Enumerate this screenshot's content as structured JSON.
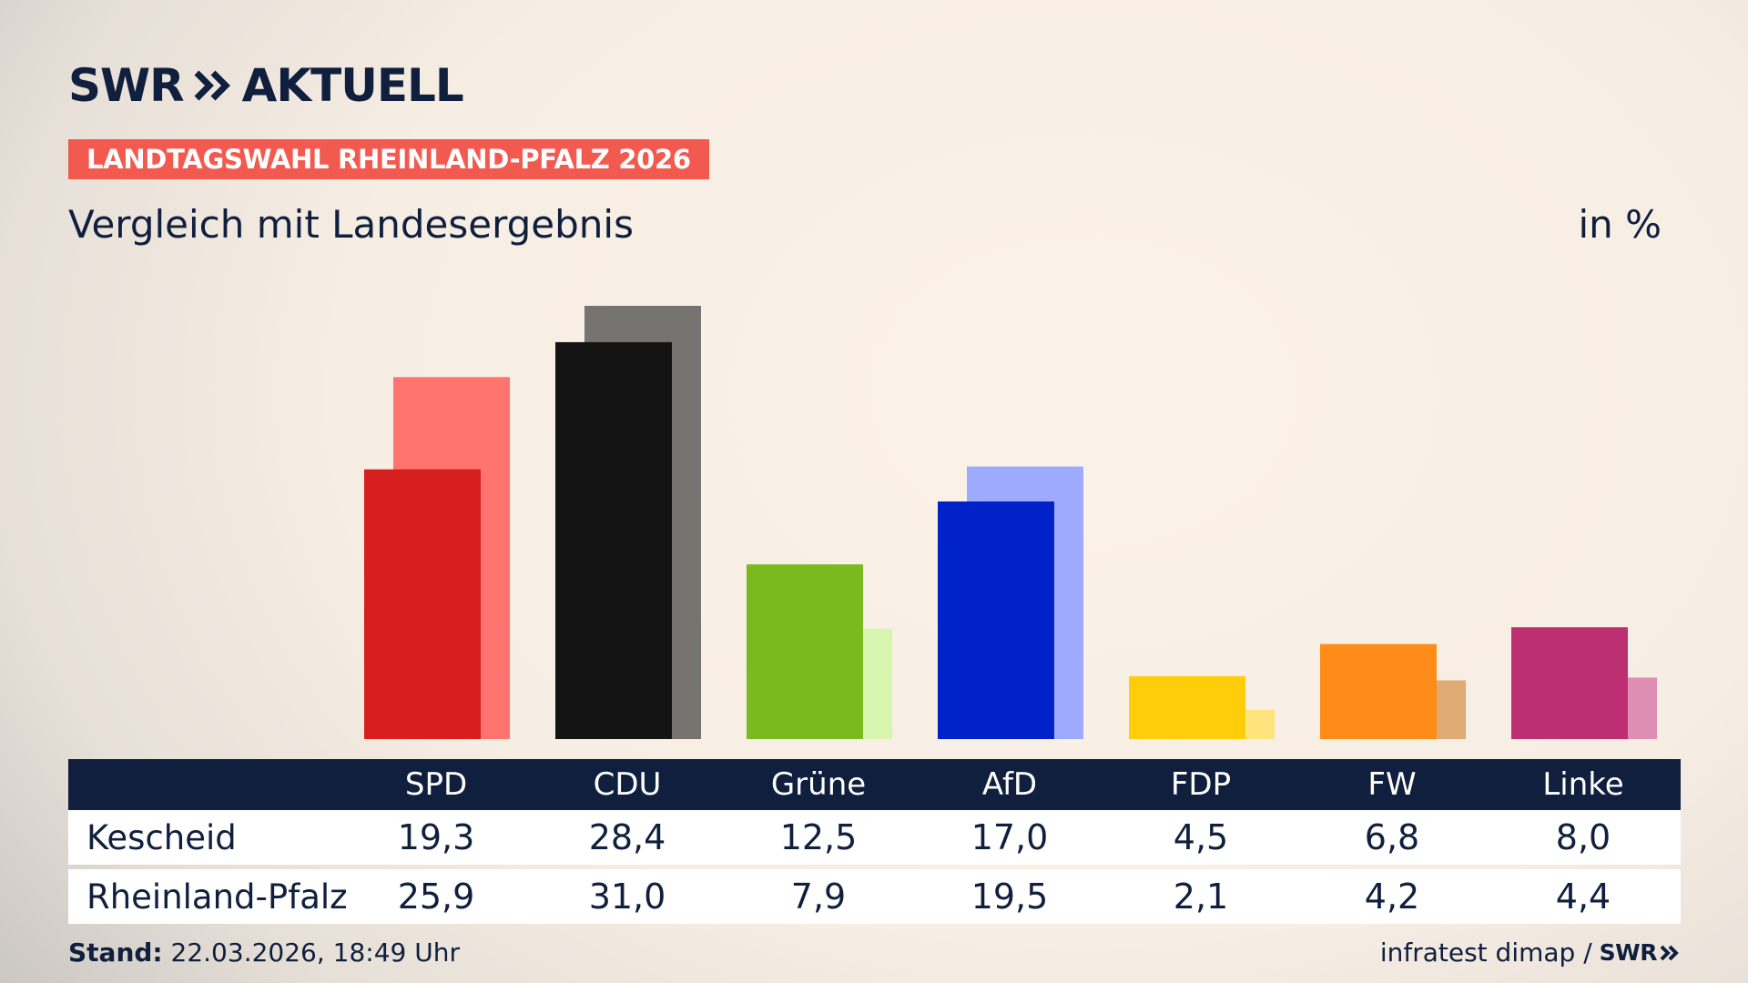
{
  "brand": {
    "logo_text": "SWR",
    "logo_suffix": "AKTUELL",
    "icon": "double-chevron-icon"
  },
  "ribbon": "LANDTAGSWAHL RHEINLAND-PFALZ 2026",
  "subtitle": "Vergleich mit Landesergebnis",
  "unit": "in %",
  "chart_data": {
    "type": "bar",
    "categories": [
      "SPD",
      "CDU",
      "Grüne",
      "AfD",
      "FDP",
      "FW",
      "Linke"
    ],
    "series": [
      {
        "name": "Kescheid",
        "values": [
          19.3,
          28.4,
          12.5,
          17.0,
          4.5,
          6.8,
          8.0
        ]
      },
      {
        "name": "Rheinland-Pfalz",
        "values": [
          25.9,
          31.0,
          7.9,
          19.5,
          2.1,
          4.2,
          4.4
        ]
      }
    ],
    "colors": {
      "Kescheid": [
        "#d71f1f",
        "#141414",
        "#7aba1e",
        "#0022c8",
        "#ffcd0a",
        "#ff8c19",
        "#bc2f73"
      ],
      "Rheinland-Pfalz": [
        "#ff746e",
        "#767371",
        "#d7f5ae",
        "#9eaafe",
        "#ffe47e",
        "#e0aa74",
        "#e08db4"
      ]
    },
    "ylim": [
      0,
      31.0
    ],
    "grid": false,
    "legend": "none"
  },
  "table": {
    "headers": [
      "SPD",
      "CDU",
      "Grüne",
      "AfD",
      "FDP",
      "FW",
      "Linke"
    ],
    "rows": [
      {
        "label": "Kescheid",
        "values": [
          "19,3",
          "28,4",
          "12,5",
          "17,0",
          "4,5",
          "6,8",
          "8,0"
        ]
      },
      {
        "label": "Rheinland-Pfalz",
        "values": [
          "25,9",
          "31,0",
          "7,9",
          "19,5",
          "2,1",
          "4,2",
          "4,4"
        ]
      }
    ]
  },
  "footer": {
    "stand_label": "Stand:",
    "stand_value": "22.03.2026, 18:49 Uhr",
    "source": "infratest dimap /",
    "source_logo": "SWR"
  }
}
